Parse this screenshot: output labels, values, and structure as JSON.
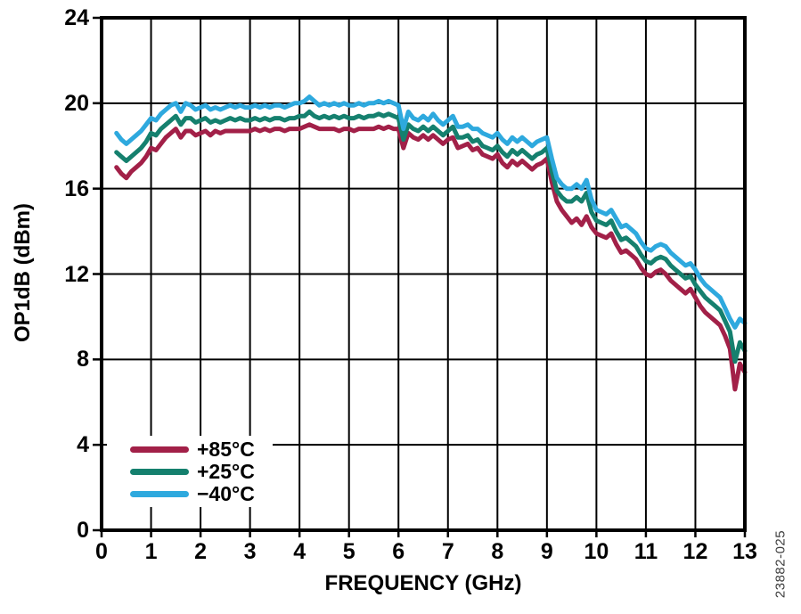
{
  "figure": {
    "watermark": "23882-025"
  },
  "chart_data": {
    "type": "line",
    "title": "",
    "xlabel": "FREQUENCY (GHz)",
    "ylabel": "OP1dB (dBm)",
    "xlim": [
      0,
      13
    ],
    "ylim": [
      0,
      24
    ],
    "x_ticks": [
      0,
      1,
      2,
      3,
      4,
      5,
      6,
      7,
      8,
      9,
      10,
      11,
      12,
      13
    ],
    "y_ticks": [
      0,
      4,
      8,
      12,
      16,
      20,
      24
    ],
    "grid": true,
    "legend_position": "lower-left",
    "colors": {
      "grid": "#000000",
      "axis": "#000000",
      "background": "#ffffff"
    },
    "x_start": 0.3,
    "x_step": 0.1,
    "series": [
      {
        "name": "+85°C",
        "color": "#A22048",
        "values": [
          17.0,
          16.7,
          16.5,
          16.8,
          17.0,
          17.2,
          17.5,
          17.9,
          17.8,
          18.1,
          18.4,
          18.6,
          18.8,
          18.4,
          18.7,
          18.7,
          18.5,
          18.6,
          18.7,
          18.5,
          18.7,
          18.6,
          18.7,
          18.7,
          18.7,
          18.7,
          18.7,
          18.7,
          18.8,
          18.7,
          18.8,
          18.7,
          18.8,
          18.8,
          18.7,
          18.8,
          18.8,
          18.8,
          18.9,
          19.0,
          18.9,
          18.8,
          18.8,
          18.8,
          18.8,
          18.7,
          18.8,
          18.8,
          18.7,
          18.8,
          18.8,
          18.8,
          18.8,
          18.9,
          18.8,
          18.9,
          18.8,
          18.8,
          17.9,
          18.6,
          18.4,
          18.3,
          18.5,
          18.3,
          18.5,
          18.3,
          18.1,
          18.3,
          18.4,
          17.9,
          18.0,
          18.1,
          17.8,
          17.9,
          17.6,
          17.5,
          17.4,
          17.6,
          17.2,
          17.0,
          17.3,
          17.1,
          17.3,
          17.1,
          16.9,
          17.1,
          17.2,
          17.4,
          16.3,
          15.4,
          15.0,
          14.7,
          14.4,
          14.6,
          14.3,
          14.7,
          14.2,
          13.9,
          13.8,
          13.7,
          13.9,
          13.4,
          13.0,
          13.1,
          12.9,
          12.7,
          12.3,
          12.0,
          11.9,
          12.1,
          12.2,
          12.0,
          11.7,
          11.5,
          11.3,
          11.1,
          11.3,
          10.9,
          10.5,
          10.2,
          10.0,
          9.8,
          9.6,
          9.1,
          8.5,
          6.6,
          7.8,
          7.4
        ]
      },
      {
        "name": "+25°C",
        "color": "#15806E",
        "values": [
          17.7,
          17.5,
          17.3,
          17.5,
          17.7,
          17.9,
          18.2,
          18.6,
          18.5,
          18.8,
          19.0,
          19.2,
          19.4,
          19.0,
          19.3,
          19.3,
          19.1,
          19.2,
          19.3,
          19.1,
          19.2,
          19.1,
          19.2,
          19.3,
          19.2,
          19.3,
          19.2,
          19.2,
          19.3,
          19.2,
          19.3,
          19.2,
          19.3,
          19.3,
          19.2,
          19.3,
          19.3,
          19.4,
          19.4,
          19.6,
          19.4,
          19.3,
          19.4,
          19.3,
          19.4,
          19.3,
          19.4,
          19.3,
          19.3,
          19.4,
          19.3,
          19.4,
          19.4,
          19.5,
          19.4,
          19.5,
          19.4,
          19.3,
          18.3,
          19.0,
          18.8,
          18.7,
          18.9,
          18.7,
          18.9,
          18.7,
          18.5,
          18.7,
          18.9,
          18.4,
          18.4,
          18.5,
          18.2,
          18.3,
          18.0,
          17.9,
          17.8,
          18.0,
          17.7,
          17.5,
          17.8,
          17.6,
          17.8,
          17.6,
          17.4,
          17.6,
          17.7,
          17.9,
          16.8,
          15.9,
          15.6,
          15.4,
          15.4,
          15.6,
          15.4,
          15.8,
          14.9,
          14.5,
          14.4,
          14.3,
          14.5,
          14.0,
          13.6,
          13.7,
          13.5,
          13.3,
          12.9,
          12.6,
          12.5,
          12.7,
          12.8,
          12.7,
          12.4,
          12.2,
          12.0,
          11.8,
          11.9,
          11.5,
          11.2,
          10.9,
          10.7,
          10.5,
          10.3,
          9.8,
          9.3,
          7.9,
          8.8,
          8.4
        ]
      },
      {
        "name": "−40°C",
        "color": "#2EA9DE",
        "values": [
          18.6,
          18.3,
          18.1,
          18.3,
          18.5,
          18.7,
          19.0,
          19.3,
          19.2,
          19.5,
          19.7,
          19.9,
          20.0,
          19.6,
          20.0,
          19.9,
          19.7,
          19.8,
          19.9,
          19.7,
          19.8,
          19.7,
          19.8,
          19.9,
          19.8,
          19.9,
          19.8,
          19.8,
          19.9,
          19.8,
          19.9,
          19.8,
          19.9,
          19.9,
          19.8,
          19.9,
          20.0,
          20.0,
          20.1,
          20.3,
          20.1,
          19.9,
          20.0,
          19.9,
          20.0,
          19.9,
          20.0,
          19.9,
          19.9,
          20.0,
          19.9,
          20.0,
          20.0,
          20.1,
          20.0,
          20.1,
          20.0,
          19.9,
          18.8,
          19.6,
          19.3,
          19.2,
          19.4,
          19.2,
          19.5,
          19.2,
          19.0,
          19.2,
          19.4,
          18.9,
          18.9,
          19.0,
          18.8,
          18.8,
          18.6,
          18.5,
          18.4,
          18.6,
          18.3,
          18.1,
          18.4,
          18.2,
          18.4,
          18.2,
          18.0,
          18.2,
          18.3,
          18.4,
          17.4,
          16.5,
          16.2,
          16.0,
          16.0,
          16.2,
          16.0,
          16.4,
          15.5,
          15.0,
          14.9,
          14.8,
          15.0,
          14.6,
          14.2,
          14.3,
          14.1,
          13.9,
          13.5,
          13.2,
          13.1,
          13.3,
          13.4,
          13.3,
          13.0,
          12.8,
          12.6,
          12.4,
          12.5,
          12.2,
          11.8,
          11.5,
          11.3,
          11.1,
          10.9,
          10.4,
          9.9,
          9.5,
          9.9,
          9.7
        ]
      }
    ]
  }
}
